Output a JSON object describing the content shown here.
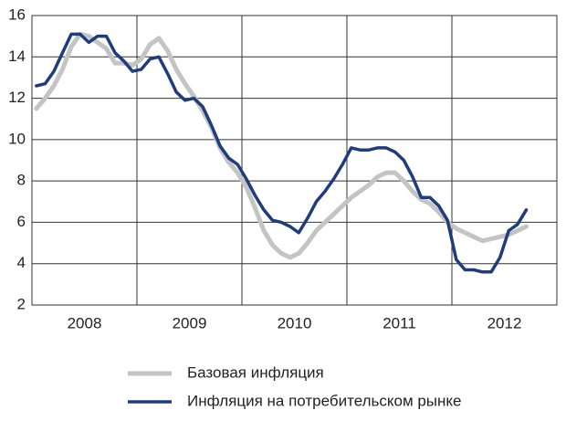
{
  "chart_data": {
    "type": "line",
    "categories": [
      null,
      null,
      null,
      null,
      null,
      null,
      "2008",
      null,
      null,
      null,
      null,
      null,
      null,
      null,
      null,
      null,
      null,
      null,
      "2009",
      null,
      null,
      null,
      null,
      null,
      null,
      null,
      null,
      null,
      null,
      null,
      "2010",
      null,
      null,
      null,
      null,
      null,
      null,
      null,
      null,
      null,
      null,
      null,
      "2011",
      null,
      null,
      null,
      null,
      null,
      null,
      null,
      null,
      null,
      null,
      null,
      "2012",
      null,
      null,
      null,
      null,
      null
    ],
    "series": [
      {
        "name": "Базовая инфляция",
        "color": "#c4c4c4",
        "values": [
          11.5,
          12.0,
          12.6,
          13.4,
          14.5,
          15.1,
          15.0,
          14.7,
          14.4,
          13.7,
          13.7,
          13.6,
          13.9,
          14.6,
          14.9,
          14.3,
          13.4,
          12.7,
          12.1,
          11.4,
          10.6,
          9.6,
          8.9,
          8.4,
          7.7,
          6.7,
          5.6,
          4.9,
          4.5,
          4.3,
          4.5,
          5.0,
          5.6,
          6.0,
          6.4,
          6.8,
          7.2,
          7.5,
          7.8,
          8.2,
          8.4,
          8.4,
          8.0,
          7.5,
          7.1,
          6.9,
          6.5,
          6.0,
          5.7,
          5.5,
          5.3,
          5.1,
          5.2,
          5.3,
          5.4,
          5.6,
          5.8,
          null,
          null,
          null
        ]
      },
      {
        "name": "Инфляция на потребительском рынке",
        "color": "#1f3c7c",
        "values": [
          12.6,
          12.7,
          13.3,
          14.2,
          15.1,
          15.1,
          14.7,
          15.0,
          15.0,
          14.2,
          13.8,
          13.3,
          13.4,
          13.9,
          14.0,
          13.2,
          12.3,
          11.9,
          12.0,
          11.6,
          10.7,
          9.7,
          9.1,
          8.8,
          8.1,
          7.3,
          6.6,
          6.1,
          6.0,
          5.8,
          5.5,
          6.2,
          7.0,
          7.5,
          8.1,
          8.8,
          9.6,
          9.5,
          9.5,
          9.6,
          9.6,
          9.4,
          9.0,
          8.2,
          7.2,
          7.2,
          6.8,
          6.1,
          4.2,
          3.7,
          3.7,
          3.6,
          3.6,
          4.3,
          5.6,
          5.9,
          6.6,
          null,
          null,
          null
        ]
      }
    ],
    "ylim": [
      2,
      16
    ],
    "yticks": [
      2,
      4,
      6,
      8,
      10,
      12,
      14,
      16
    ],
    "grid": true
  }
}
